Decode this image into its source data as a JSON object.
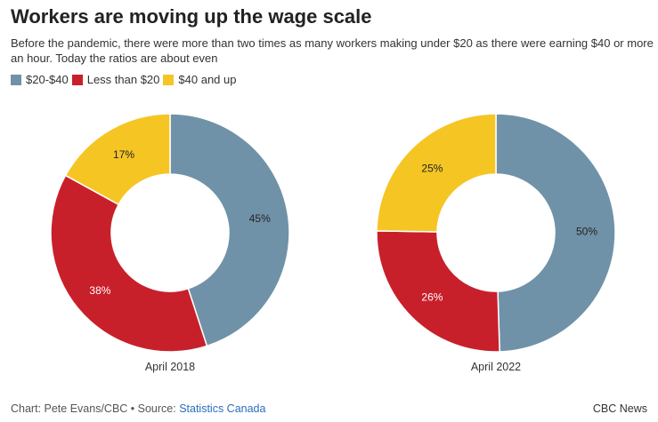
{
  "header": {
    "title": "Workers are moving up the wage scale",
    "subtitle": "Before the pandemic, there were more than two times as many workers making under $20 as there were earning $40 or more an hour. Today the ratios are about even"
  },
  "legend": [
    {
      "label": "$20-$40",
      "color": "#7092a8"
    },
    {
      "label": "Less than $20",
      "color": "#c8202b"
    },
    {
      "label": "$40 and up",
      "color": "#f5c524"
    }
  ],
  "chart_data": [
    {
      "type": "pie",
      "donut": true,
      "caption": "April 2018",
      "categories": [
        "$20-$40",
        "Less than $20",
        "$40 and up"
      ],
      "values": [
        45,
        38,
        17
      ],
      "labels": [
        "45%",
        "38%",
        "17%"
      ]
    },
    {
      "type": "pie",
      "donut": true,
      "caption": "April 2022",
      "categories": [
        "$20-$40",
        "Less than $20",
        "$40 and up"
      ],
      "values": [
        50,
        26,
        25
      ],
      "labels": [
        "50%",
        "26%",
        "25%"
      ]
    }
  ],
  "footer": {
    "credit": "Chart: Pete Evans/CBC • Source: ",
    "source_link": "Statistics Canada",
    "brand": "CBC News"
  }
}
